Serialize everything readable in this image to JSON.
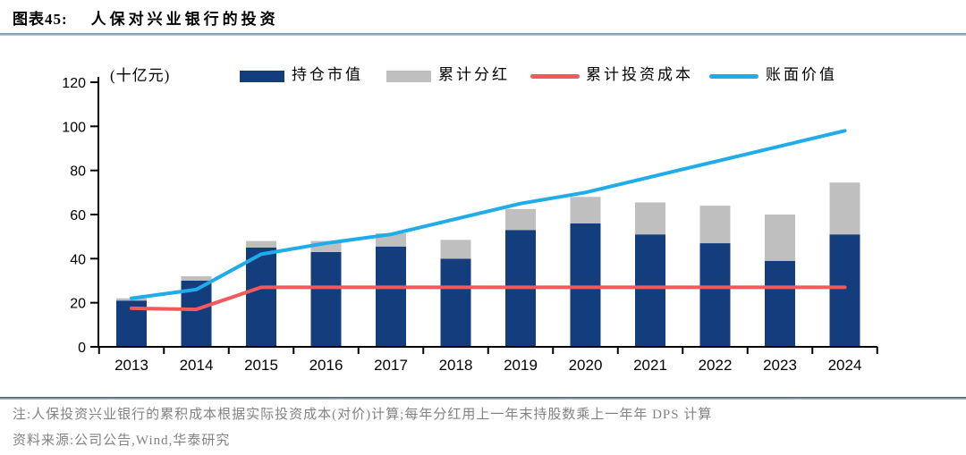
{
  "figure": {
    "label": "图表45:",
    "title": "人保对兴业银行的投资",
    "note": "注:人保投资兴业银行的累积成本根据实际投资成本(对价)计算;每年分红用上一年末持股数乘上一年年 DPS 计算",
    "source": "资料来源:公司公告,Wind,华泰研究"
  },
  "colors": {
    "bar_navy": "#143D7D",
    "bar_gray": "#BFBFBF",
    "line_red": "#F2595B",
    "line_blue": "#1FACE8",
    "axis_black": "#000000",
    "note_gray": "#828282"
  },
  "chart_data": {
    "type": "combo-stacked-bar-line",
    "unit_label": "(十亿元)",
    "categories": [
      "2013",
      "2014",
      "2015",
      "2016",
      "2017",
      "2018",
      "2019",
      "2020",
      "2021",
      "2022",
      "2023",
      "2024"
    ],
    "series": [
      {
        "key": "holding",
        "name": "持仓市值",
        "type": "bar",
        "stack": "s1",
        "color": "#143D7D",
        "values": [
          21,
          30,
          45,
          43,
          45.5,
          40,
          53,
          56,
          51,
          47,
          39,
          51
        ]
      },
      {
        "key": "dividend",
        "name": "累计分红",
        "type": "bar",
        "stack": "s1",
        "color": "#BFBFBF",
        "values": [
          1,
          2,
          3,
          5,
          6,
          8.5,
          9.5,
          12,
          14.5,
          17,
          21,
          23.5
        ]
      },
      {
        "key": "cost",
        "name": "累计投资成本",
        "type": "line",
        "color": "#F2595B",
        "values": [
          17.5,
          17,
          27,
          27,
          27,
          27,
          27,
          27,
          27,
          27,
          27,
          27
        ]
      },
      {
        "key": "book",
        "name": "账面价值",
        "type": "line",
        "color": "#1FACE8",
        "values": [
          22,
          26,
          42,
          47,
          51,
          58,
          65,
          70,
          77,
          84,
          91,
          98
        ]
      }
    ],
    "ylim": [
      0,
      120
    ],
    "yticks": [
      0,
      20,
      40,
      60,
      80,
      100,
      120
    ],
    "grid": false,
    "legend_position": "top"
  }
}
